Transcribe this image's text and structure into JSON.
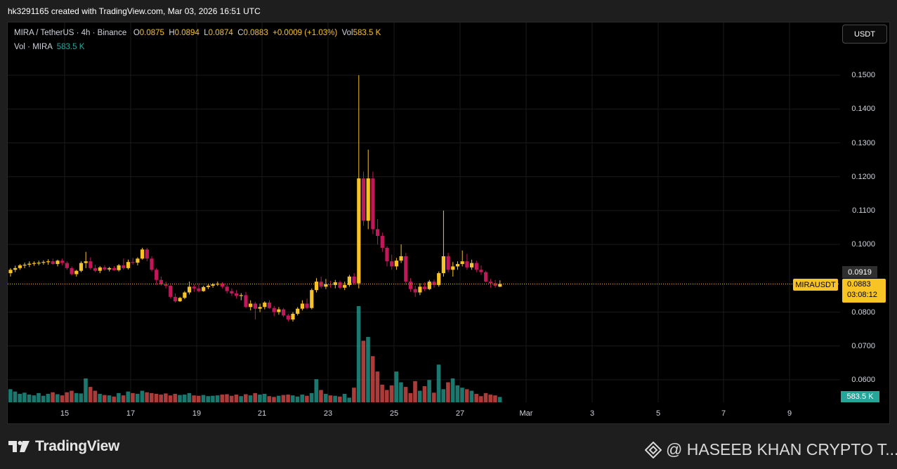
{
  "header": {
    "caption": "hk3291165 created with TradingView.com, Mar 03, 2026 16:51 UTC"
  },
  "legend": {
    "symbol": "MIRA / TetherUS · 4h · Binance",
    "open_label": "O",
    "open": "0.0875",
    "high_label": "H",
    "high": "0.0894",
    "low_label": "L",
    "low": "0.0874",
    "close_label": "C",
    "close": "0.0883",
    "change": "+0.0009 (+1.03%)",
    "vol_label": "Vol",
    "vol": "583.5 K",
    "vol_row_label": "Vol · MIRA",
    "vol_row_value": "583.5 K"
  },
  "currency_button": "USDT",
  "price_tags": {
    "symbol": "MIRAUSDT",
    "last_price": "0.0883",
    "countdown": "03:08:12",
    "prev_price": "0.0919",
    "volume": "583.5 K"
  },
  "footer": {
    "brand": "TradingView",
    "watermark": "@ HASEEB KHAN CRYPTO T..."
  },
  "colors": {
    "up": "#f7c325",
    "down": "#c2185b",
    "vol_up": "#26a69a",
    "vol_down": "#ef5350",
    "background": "#000000"
  },
  "chart_data": {
    "type": "candlestick",
    "title": "MIRA / TetherUS · 4h · Binance",
    "y_axis": {
      "ticks": [
        "0.0600",
        "0.0700",
        "0.0800",
        "0.1000",
        "0.1100",
        "0.1200",
        "0.1300",
        "0.1400",
        "0.1500"
      ],
      "range": [
        0.0555,
        0.1625
      ]
    },
    "x_axis": {
      "ticks": [
        "15",
        "17",
        "19",
        "21",
        "23",
        "25",
        "27",
        "Mar",
        "3",
        "5",
        "7",
        "9"
      ]
    },
    "candles": [
      [
        0.0915,
        0.093,
        0.0905,
        0.0925
      ],
      [
        0.0925,
        0.0937,
        0.0918,
        0.093
      ],
      [
        0.093,
        0.0942,
        0.0925,
        0.0938
      ],
      [
        0.0938,
        0.0946,
        0.093,
        0.094
      ],
      [
        0.094,
        0.095,
        0.0933,
        0.0943
      ],
      [
        0.0943,
        0.095,
        0.0937,
        0.0945
      ],
      [
        0.0945,
        0.0952,
        0.0938,
        0.0946
      ],
      [
        0.0946,
        0.0953,
        0.094,
        0.0948
      ],
      [
        0.0948,
        0.0956,
        0.094,
        0.095
      ],
      [
        0.095,
        0.0958,
        0.094,
        0.0942
      ],
      [
        0.0942,
        0.0955,
        0.0935,
        0.0952
      ],
      [
        0.0952,
        0.0958,
        0.0938,
        0.0945
      ],
      [
        0.0945,
        0.095,
        0.0925,
        0.093
      ],
      [
        0.093,
        0.0935,
        0.0908,
        0.0912
      ],
      [
        0.0912,
        0.0925,
        0.0905,
        0.0922
      ],
      [
        0.0922,
        0.095,
        0.0918,
        0.0945
      ],
      [
        0.0945,
        0.0978,
        0.093,
        0.095
      ],
      [
        0.095,
        0.0962,
        0.0925,
        0.093
      ],
      [
        0.093,
        0.094,
        0.0918,
        0.0922
      ],
      [
        0.0922,
        0.0936,
        0.0915,
        0.0932
      ],
      [
        0.0932,
        0.0938,
        0.0922,
        0.0926
      ],
      [
        0.0926,
        0.0934,
        0.092,
        0.093
      ],
      [
        0.093,
        0.0936,
        0.0922,
        0.0924
      ],
      [
        0.0924,
        0.0942,
        0.092,
        0.0938
      ],
      [
        0.0938,
        0.0958,
        0.0925,
        0.093
      ],
      [
        0.093,
        0.0955,
        0.0926,
        0.0948
      ],
      [
        0.0948,
        0.096,
        0.094,
        0.0946
      ],
      [
        0.0946,
        0.0962,
        0.0938,
        0.0958
      ],
      [
        0.0958,
        0.099,
        0.0955,
        0.0985
      ],
      [
        0.0985,
        0.099,
        0.095,
        0.0958
      ],
      [
        0.0958,
        0.0965,
        0.092,
        0.0925
      ],
      [
        0.0925,
        0.093,
        0.088,
        0.0895
      ],
      [
        0.0895,
        0.0905,
        0.0878,
        0.0882
      ],
      [
        0.0882,
        0.089,
        0.087,
        0.0878
      ],
      [
        0.0878,
        0.088,
        0.084,
        0.0845
      ],
      [
        0.0845,
        0.0855,
        0.0828,
        0.0832
      ],
      [
        0.0832,
        0.0845,
        0.083,
        0.0842
      ],
      [
        0.0842,
        0.0862,
        0.0838,
        0.0858
      ],
      [
        0.0858,
        0.089,
        0.0852,
        0.0875
      ],
      [
        0.0875,
        0.0882,
        0.086,
        0.087
      ],
      [
        0.087,
        0.0885,
        0.0858,
        0.0862
      ],
      [
        0.0862,
        0.0878,
        0.086,
        0.0874
      ],
      [
        0.0874,
        0.0882,
        0.0868,
        0.0878
      ],
      [
        0.0878,
        0.0886,
        0.0872,
        0.0882
      ],
      [
        0.0882,
        0.089,
        0.0877,
        0.0884
      ],
      [
        0.0884,
        0.0888,
        0.087,
        0.0875
      ],
      [
        0.0875,
        0.088,
        0.0855,
        0.0862
      ],
      [
        0.0862,
        0.087,
        0.0848,
        0.0855
      ],
      [
        0.0855,
        0.0865,
        0.084,
        0.0848
      ],
      [
        0.0848,
        0.0856,
        0.0835,
        0.085
      ],
      [
        0.085,
        0.086,
        0.0812,
        0.0815
      ],
      [
        0.0815,
        0.0835,
        0.0805,
        0.0825
      ],
      [
        0.0825,
        0.083,
        0.0778,
        0.081
      ],
      [
        0.081,
        0.0825,
        0.08,
        0.0815
      ],
      [
        0.0815,
        0.0832,
        0.0808,
        0.0828
      ],
      [
        0.0828,
        0.0835,
        0.081,
        0.0812
      ],
      [
        0.0812,
        0.0818,
        0.0788,
        0.08
      ],
      [
        0.08,
        0.0815,
        0.0792,
        0.0808
      ],
      [
        0.0808,
        0.0812,
        0.0785,
        0.079
      ],
      [
        0.079,
        0.0795,
        0.0772,
        0.0778
      ],
      [
        0.0778,
        0.08,
        0.0772,
        0.0795
      ],
      [
        0.0795,
        0.0815,
        0.079,
        0.081
      ],
      [
        0.081,
        0.0835,
        0.0805,
        0.0825
      ],
      [
        0.0825,
        0.084,
        0.0808,
        0.0812
      ],
      [
        0.0812,
        0.087,
        0.0808,
        0.0865
      ],
      [
        0.0865,
        0.09,
        0.0858,
        0.089
      ],
      [
        0.089,
        0.0905,
        0.087,
        0.0875
      ],
      [
        0.0875,
        0.0898,
        0.0868,
        0.0882
      ],
      [
        0.0882,
        0.0892,
        0.0872,
        0.088
      ],
      [
        0.088,
        0.0895,
        0.087,
        0.0888
      ],
      [
        0.0888,
        0.0893,
        0.0868,
        0.0872
      ],
      [
        0.0872,
        0.089,
        0.0865,
        0.088
      ],
      [
        0.088,
        0.091,
        0.0875,
        0.0905
      ],
      [
        0.0905,
        0.0915,
        0.088,
        0.0885
      ],
      [
        0.0885,
        0.15,
        0.087,
        0.1195
      ],
      [
        0.1195,
        0.1215,
        0.1055,
        0.107
      ],
      [
        0.107,
        0.128,
        0.1045,
        0.1195
      ],
      [
        0.1195,
        0.1215,
        0.103,
        0.1045
      ],
      [
        0.1045,
        0.1075,
        0.1,
        0.1025
      ],
      [
        0.1025,
        0.1035,
        0.0978,
        0.099
      ],
      [
        0.099,
        0.0995,
        0.0935,
        0.095
      ],
      [
        0.095,
        0.097,
        0.0925,
        0.0935
      ],
      [
        0.0935,
        0.096,
        0.0925,
        0.0952
      ],
      [
        0.0952,
        0.1,
        0.0945,
        0.0965
      ],
      [
        0.0965,
        0.0975,
        0.088,
        0.089
      ],
      [
        0.089,
        0.09,
        0.086,
        0.0868
      ],
      [
        0.0868,
        0.0878,
        0.0845,
        0.0858
      ],
      [
        0.0858,
        0.0885,
        0.085,
        0.0875
      ],
      [
        0.0875,
        0.0888,
        0.0862,
        0.0868
      ],
      [
        0.0868,
        0.0895,
        0.0865,
        0.089
      ],
      [
        0.089,
        0.0896,
        0.0872,
        0.088
      ],
      [
        0.088,
        0.092,
        0.0875,
        0.0915
      ],
      [
        0.0915,
        0.11,
        0.0905,
        0.0965
      ],
      [
        0.0965,
        0.0975,
        0.0918,
        0.0925
      ],
      [
        0.0925,
        0.0948,
        0.0905,
        0.0935
      ],
      [
        0.0935,
        0.095,
        0.0925,
        0.0942
      ],
      [
        0.0942,
        0.0982,
        0.0935,
        0.095
      ],
      [
        0.095,
        0.0972,
        0.0925,
        0.0932
      ],
      [
        0.0932,
        0.0955,
        0.0925,
        0.0945
      ],
      [
        0.0945,
        0.0952,
        0.0918,
        0.0925
      ],
      [
        0.0925,
        0.0938,
        0.091,
        0.0918
      ],
      [
        0.0918,
        0.0922,
        0.0888,
        0.089
      ],
      [
        0.089,
        0.0898,
        0.0872,
        0.0885
      ],
      [
        0.0885,
        0.0895,
        0.0872,
        0.0878
      ],
      [
        0.0875,
        0.0894,
        0.0874,
        0.0883
      ]
    ],
    "volume": [
      34,
      28,
      22,
      25,
      20,
      18,
      24,
      17,
      22,
      26,
      21,
      18,
      26,
      30,
      24,
      23,
      62,
      40,
      30,
      22,
      19,
      18,
      15,
      24,
      18,
      28,
      24,
      22,
      30,
      26,
      24,
      22,
      20,
      23,
      18,
      22,
      19,
      20,
      24,
      18,
      17,
      19,
      16,
      17,
      18,
      20,
      21,
      17,
      20,
      16,
      21,
      18,
      24,
      20,
      22,
      16,
      14,
      17,
      19,
      20,
      18,
      15,
      20,
      17,
      24,
      60,
      32,
      22,
      18,
      17,
      15,
      22,
      12,
      38,
      250,
      160,
      170,
      120,
      80,
      46,
      32,
      44,
      80,
      52,
      40,
      24,
      55,
      30,
      42,
      58,
      25,
      98,
      34,
      52,
      62,
      44,
      38,
      34,
      30,
      22,
      16,
      24,
      20,
      18,
      14
    ]
  }
}
